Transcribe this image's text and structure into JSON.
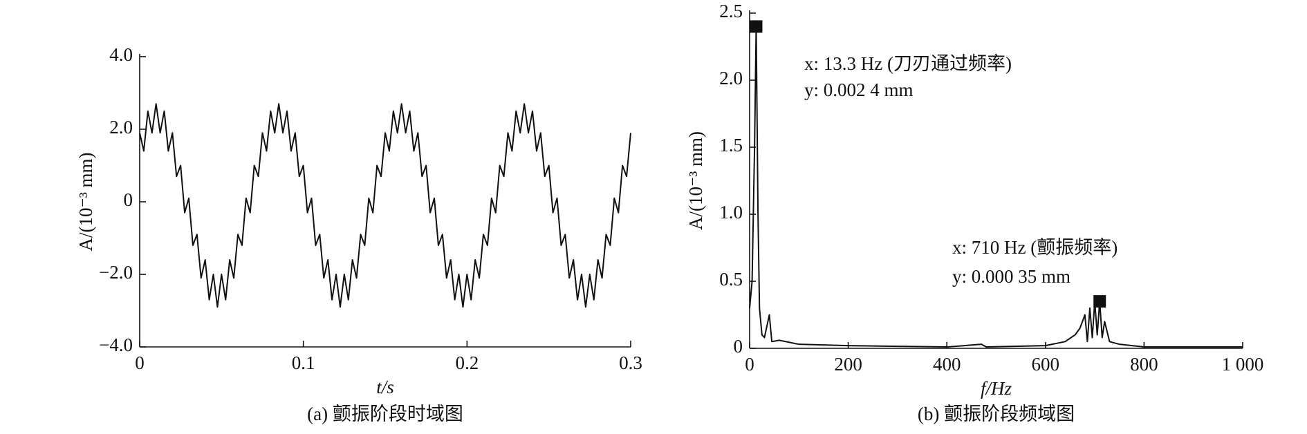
{
  "chart_data": [
    {
      "type": "line",
      "caption": "(a) 颤振阶段时域图",
      "xlabel": "t/s",
      "ylabel": "A/(10⁻³ mm)",
      "color": "#111111",
      "xlim": [
        0,
        0.3
      ],
      "xticks": [
        0,
        0.1,
        0.2,
        0.3
      ],
      "ylim": [
        -4,
        4
      ],
      "yticks": [
        {
          "value": -4,
          "label": "−4.0"
        },
        {
          "value": -2,
          "label": "−2.0"
        },
        0,
        {
          "value": 2,
          "label": "2.0"
        },
        {
          "value": 4,
          "label": "4.0"
        }
      ],
      "x": [
        0,
        0.0025,
        0.005,
        0.0075,
        0.01,
        0.0125,
        0.015,
        0.0175,
        0.02,
        0.0225,
        0.025,
        0.0275,
        0.03,
        0.0325,
        0.035,
        0.0375,
        0.04,
        0.0425,
        0.045,
        0.0475,
        0.05,
        0.0525,
        0.055,
        0.0575,
        0.06,
        0.0625,
        0.065,
        0.0675,
        0.07,
        0.0725,
        0.075,
        0.0775,
        0.08,
        0.0825,
        0.085,
        0.0875,
        0.09,
        0.0925,
        0.095,
        0.0975,
        0.1,
        0.1025,
        0.105,
        0.1075,
        0.11,
        0.1125,
        0.115,
        0.1175,
        0.12,
        0.1225,
        0.125,
        0.1275,
        0.13,
        0.1325,
        0.135,
        0.1375,
        0.14,
        0.1425,
        0.145,
        0.1475,
        0.15,
        0.1525,
        0.155,
        0.1575,
        0.16,
        0.1625,
        0.165,
        0.1675,
        0.17,
        0.1725,
        0.175,
        0.1775,
        0.18,
        0.1825,
        0.185,
        0.1875,
        0.19,
        0.1925,
        0.195,
        0.1975,
        0.2,
        0.2025,
        0.205,
        0.2075,
        0.21,
        0.2125,
        0.215,
        0.2175,
        0.22,
        0.2225,
        0.225,
        0.2275,
        0.23,
        0.2325,
        0.235,
        0.2375,
        0.24,
        0.2425,
        0.245,
        0.2475,
        0.25,
        0.2525,
        0.255,
        0.2575,
        0.26,
        0.2625,
        0.265,
        0.2675,
        0.27,
        0.2725,
        0.275,
        0.2775,
        0.28,
        0.2825,
        0.285,
        0.2875,
        0.29,
        0.2925,
        0.295,
        0.2975,
        0.3
      ],
      "values": [
        1.9,
        1.4,
        2.5,
        1.9,
        2.7,
        1.9,
        2.5,
        1.4,
        1.9,
        0.7,
        1.0,
        -0.3,
        0.1,
        -1.2,
        -0.9,
        -2.1,
        -1.6,
        -2.7,
        -2.0,
        -2.9,
        -2.0,
        -2.7,
        -1.6,
        -2.1,
        -0.9,
        -1.2,
        0.1,
        -0.3,
        1.0,
        0.7,
        1.9,
        1.4,
        2.5,
        1.9,
        2.7,
        1.9,
        2.5,
        1.4,
        1.9,
        0.7,
        1.0,
        -0.3,
        0.1,
        -1.2,
        -0.9,
        -2.1,
        -1.6,
        -2.7,
        -2.0,
        -2.9,
        -2.0,
        -2.7,
        -1.6,
        -2.1,
        -0.9,
        -1.2,
        0.1,
        -0.3,
        1.0,
        0.7,
        1.9,
        1.4,
        2.5,
        1.9,
        2.7,
        1.9,
        2.5,
        1.4,
        1.9,
        0.7,
        1.0,
        -0.3,
        0.1,
        -1.2,
        -0.9,
        -2.1,
        -1.6,
        -2.7,
        -2.0,
        -2.9,
        -2.0,
        -2.7,
        -1.6,
        -2.1,
        -0.9,
        -1.2,
        0.1,
        -0.3,
        1.0,
        0.7,
        1.9,
        1.4,
        2.5,
        1.9,
        2.7,
        1.9,
        2.5,
        1.4,
        1.9,
        0.7,
        1.0,
        -0.3,
        0.1,
        -1.2,
        -0.9,
        -2.1,
        -1.6,
        -2.7,
        -2.0,
        -2.9,
        -2.0,
        -2.7,
        -1.6,
        -2.1,
        -0.9,
        -1.2,
        0.1,
        -0.3,
        1.0,
        0.7,
        1.9
      ]
    },
    {
      "type": "line",
      "caption": "(b) 颤振阶段频域图",
      "xlabel": "f/Hz",
      "ylabel": "A/(10⁻³ mm)",
      "color": "#111111",
      "xlim": [
        0,
        1000
      ],
      "xticks": [
        0,
        200,
        400,
        600,
        800,
        {
          "value": 1000,
          "label": "1 000"
        }
      ],
      "ylim": [
        0,
        2.5
      ],
      "yticks": [
        0,
        0.5,
        {
          "value": 1,
          "label": "1.0"
        },
        1.5,
        {
          "value": 2,
          "label": "2.0"
        },
        2.5
      ],
      "x": [
        0,
        5,
        10,
        13.3,
        17,
        20,
        25,
        30,
        40,
        45,
        60,
        100,
        200,
        400,
        470,
        480,
        600,
        640,
        660,
        670,
        680,
        685,
        690,
        695,
        700,
        705,
        710,
        715,
        720,
        730,
        750,
        800,
        1000
      ],
      "values": [
        0.3,
        0.5,
        1.5,
        2.4,
        1.0,
        0.3,
        0.1,
        0.08,
        0.25,
        0.05,
        0.06,
        0.03,
        0.02,
        0.01,
        0.03,
        0.01,
        0.02,
        0.05,
        0.1,
        0.15,
        0.25,
        0.05,
        0.3,
        0.08,
        0.35,
        0.1,
        0.35,
        0.08,
        0.2,
        0.05,
        0.03,
        0.01,
        0.01
      ],
      "markers": [
        {
          "x": 13.3,
          "y": 2.4
        },
        {
          "x": 710,
          "y": 0.35
        }
      ],
      "annotations": [
        "x: 13.3 Hz (刀刃通过频率)",
        "y: 0.002 4 mm",
        "x: 710 Hz (颤振频率)",
        "y: 0.000 35 mm"
      ]
    }
  ]
}
